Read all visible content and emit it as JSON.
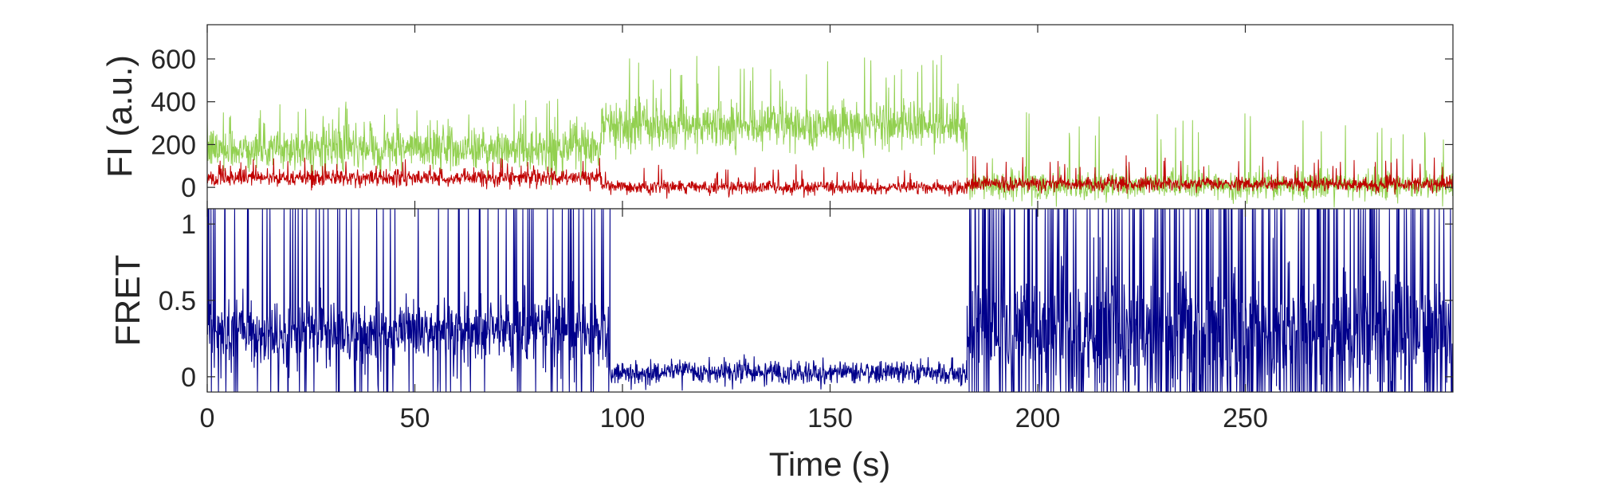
{
  "chart_data": [
    {
      "panel": "top",
      "type": "line",
      "ylabel": "FI (a.u.)",
      "xlim": [
        0,
        300
      ],
      "ylim": [
        -100,
        760
      ],
      "yticks": [
        0,
        200,
        400,
        600
      ],
      "xticks": [
        0,
        50,
        100,
        150,
        200,
        250
      ],
      "grid": false,
      "series": [
        {
          "color": "#92d050",
          "segments": [
            {
              "t0": 0,
              "t1": 95,
              "mean": 180,
              "noise": 90,
              "spike": 420
            },
            {
              "t0": 95,
              "t1": 183,
              "mean": 290,
              "noise": 100,
              "spike": 620
            },
            {
              "t0": 183,
              "t1": 300,
              "mean": 10,
              "noise": 60,
              "spike": 360
            }
          ]
        },
        {
          "color": "#c00000",
          "segments": [
            {
              "t0": 0,
              "t1": 95,
              "mean": 45,
              "noise": 35,
              "spike": 140
            },
            {
              "t0": 95,
              "t1": 183,
              "mean": 0,
              "noise": 28,
              "spike": 110
            },
            {
              "t0": 183,
              "t1": 300,
              "mean": 15,
              "noise": 30,
              "spike": 150
            }
          ]
        }
      ]
    },
    {
      "panel": "bottom",
      "type": "line",
      "xlabel": "Time (s)",
      "ylabel": "FRET",
      "xlim": [
        0,
        300
      ],
      "ylim": [
        -0.1,
        1.1
      ],
      "yticks": [
        0,
        0.5,
        1
      ],
      "xticks": [
        0,
        50,
        100,
        150,
        200,
        250
      ],
      "grid": false,
      "series": [
        {
          "color": "#00008b",
          "segments": [
            {
              "t0": 0,
              "t1": 97,
              "mean": 0.3,
              "noise": 0.2,
              "clipFrac": 0.12
            },
            {
              "t0": 97,
              "t1": 183,
              "mean": 0.03,
              "noise": 0.07,
              "clipFrac": 0.0
            },
            {
              "t0": 183,
              "t1": 300,
              "mean": 0.3,
              "noise": 0.35,
              "clipFrac": 0.3
            }
          ]
        }
      ]
    }
  ]
}
